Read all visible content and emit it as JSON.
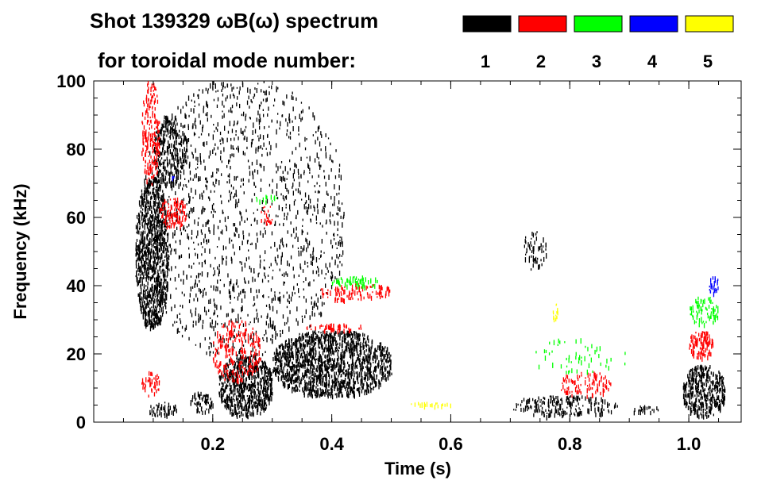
{
  "chart_data": {
    "type": "heatmap",
    "title": "Shot 139329 ωB(ω) spectrum",
    "legend_title": "for toroidal mode number:",
    "legend": [
      {
        "label": "1",
        "color": "#000000"
      },
      {
        "label": "2",
        "color": "#ff0000"
      },
      {
        "label": "3",
        "color": "#00ff00"
      },
      {
        "label": "4",
        "color": "#0000ff"
      },
      {
        "label": "5",
        "color": "#ffff00"
      }
    ],
    "xlabel": "Time (s)",
    "ylabel": "Frequency (kHz)",
    "xlim": [
      0,
      1.088
    ],
    "ylim": [
      0,
      100
    ],
    "xticks": [
      {
        "v": 0.2,
        "label": "0.2"
      },
      {
        "v": 0.4,
        "label": "0.4"
      },
      {
        "v": 0.6,
        "label": "0.6"
      },
      {
        "v": 0.8,
        "label": "0.8"
      },
      {
        "v": 1.0,
        "label": "1.0"
      }
    ],
    "yticks": [
      {
        "v": 0,
        "label": "0"
      },
      {
        "v": 20,
        "label": "20"
      },
      {
        "v": 40,
        "label": "40"
      },
      {
        "v": 60,
        "label": "60"
      },
      {
        "v": 80,
        "label": "80"
      },
      {
        "v": 100,
        "label": "100"
      }
    ],
    "regions": [
      {
        "mode": 1,
        "t": [
          0.07,
          0.125
        ],
        "f": [
          28,
          72
        ],
        "density": 0.9
      },
      {
        "mode": 1,
        "t": [
          0.1,
          0.155
        ],
        "f": [
          70,
          90
        ],
        "density": 0.6
      },
      {
        "mode": 1,
        "t": [
          0.08,
          0.42
        ],
        "f": [
          20,
          100
        ],
        "density": 0.12
      },
      {
        "mode": 1,
        "t": [
          0.21,
          0.3
        ],
        "f": [
          2,
          20
        ],
        "density": 0.95
      },
      {
        "mode": 1,
        "t": [
          0.3,
          0.5
        ],
        "f": [
          8,
          27
        ],
        "density": 0.85
      },
      {
        "mode": 1,
        "t": [
          0.16,
          0.2
        ],
        "f": [
          3,
          9
        ],
        "density": 0.6
      },
      {
        "mode": 1,
        "t": [
          0.09,
          0.14
        ],
        "f": [
          2,
          6
        ],
        "density": 0.5
      },
      {
        "mode": 1,
        "t": [
          0.7,
          0.88
        ],
        "f": [
          2,
          8
        ],
        "density": 0.45
      },
      {
        "mode": 1,
        "t": [
          0.9,
          0.95
        ],
        "f": [
          3,
          5
        ],
        "density": 0.5
      },
      {
        "mode": 1,
        "t": [
          0.99,
          1.06
        ],
        "f": [
          2,
          17
        ],
        "density": 0.8
      },
      {
        "mode": 1,
        "t": [
          0.72,
          0.76
        ],
        "f": [
          45,
          56
        ],
        "density": 0.3
      },
      {
        "mode": 2,
        "t": [
          0.08,
          0.11
        ],
        "f": [
          70,
          100
        ],
        "density": 0.5
      },
      {
        "mode": 2,
        "t": [
          0.11,
          0.155
        ],
        "f": [
          57,
          66
        ],
        "density": 0.6
      },
      {
        "mode": 2,
        "t": [
          0.08,
          0.11
        ],
        "f": [
          8,
          15
        ],
        "density": 0.4
      },
      {
        "mode": 2,
        "t": [
          0.2,
          0.28
        ],
        "f": [
          12,
          30
        ],
        "density": 0.35
      },
      {
        "mode": 2,
        "t": [
          0.38,
          0.5
        ],
        "f": [
          36,
          41
        ],
        "density": 0.4
      },
      {
        "mode": 2,
        "t": [
          0.35,
          0.46
        ],
        "f": [
          27,
          29
        ],
        "density": 0.5
      },
      {
        "mode": 2,
        "t": [
          0.28,
          0.3
        ],
        "f": [
          58,
          64
        ],
        "density": 0.4
      },
      {
        "mode": 2,
        "t": [
          0.78,
          0.87
        ],
        "f": [
          8,
          15
        ],
        "density": 0.35
      },
      {
        "mode": 2,
        "t": [
          1.0,
          1.04
        ],
        "f": [
          19,
          27
        ],
        "density": 0.7
      },
      {
        "mode": 3,
        "t": [
          0.4,
          0.48
        ],
        "f": [
          40,
          43
        ],
        "density": 0.5
      },
      {
        "mode": 3,
        "t": [
          0.27,
          0.31
        ],
        "f": [
          65,
          67
        ],
        "density": 0.5
      },
      {
        "mode": 3,
        "t": [
          0.73,
          0.9
        ],
        "f": [
          15,
          25
        ],
        "density": 0.08
      },
      {
        "mode": 3,
        "t": [
          1.0,
          1.05
        ],
        "f": [
          29,
          37
        ],
        "density": 0.4
      },
      {
        "mode": 4,
        "t": [
          1.03,
          1.05
        ],
        "f": [
          38,
          43
        ],
        "density": 0.5
      },
      {
        "mode": 4,
        "t": [
          0.13,
          0.135
        ],
        "f": [
          71,
          73
        ],
        "density": 0.6
      },
      {
        "mode": 5,
        "t": [
          0.52,
          0.6
        ],
        "f": [
          5,
          6
        ],
        "density": 0.6
      },
      {
        "mode": 5,
        "t": [
          0.77,
          0.78
        ],
        "f": [
          30,
          35
        ],
        "density": 0.7
      }
    ]
  }
}
